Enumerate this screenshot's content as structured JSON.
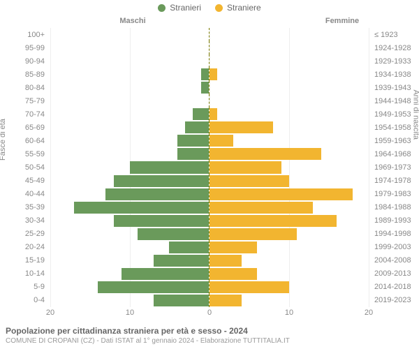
{
  "legend": {
    "male": {
      "label": "Stranieri",
      "color": "#6a9a5b"
    },
    "female": {
      "label": "Straniere",
      "color": "#f2b530"
    }
  },
  "col_headers": {
    "male": "Maschi",
    "female": "Femmine"
  },
  "axis_titles": {
    "left": "Fasce di età",
    "right": "Anni di nascita"
  },
  "xaxis": {
    "max": 20,
    "ticks_left": [
      20,
      10,
      0
    ],
    "ticks_right": [
      0,
      10,
      20
    ],
    "grid_color": "#eeeeee"
  },
  "colors": {
    "male_bar": "#6a9a5b",
    "female_bar": "#f2b530",
    "center_line": "#808000",
    "background": "#ffffff",
    "text": "#888888"
  },
  "chart_type": "population-pyramid",
  "footer": {
    "title": "Popolazione per cittadinanza straniera per età e sesso - 2024",
    "subtitle": "COMUNE DI CROPANI (CZ) - Dati ISTAT al 1° gennaio 2024 - Elaborazione TUTTITALIA.IT"
  },
  "rows": [
    {
      "age": "100+",
      "birth": "≤ 1923",
      "m": 0,
      "f": 0
    },
    {
      "age": "95-99",
      "birth": "1924-1928",
      "m": 0,
      "f": 0
    },
    {
      "age": "90-94",
      "birth": "1929-1933",
      "m": 0,
      "f": 0
    },
    {
      "age": "85-89",
      "birth": "1934-1938",
      "m": 1,
      "f": 1
    },
    {
      "age": "80-84",
      "birth": "1939-1943",
      "m": 1,
      "f": 0
    },
    {
      "age": "75-79",
      "birth": "1944-1948",
      "m": 0,
      "f": 0
    },
    {
      "age": "70-74",
      "birth": "1949-1953",
      "m": 2,
      "f": 1
    },
    {
      "age": "65-69",
      "birth": "1954-1958",
      "m": 3,
      "f": 8
    },
    {
      "age": "60-64",
      "birth": "1959-1963",
      "m": 4,
      "f": 3
    },
    {
      "age": "55-59",
      "birth": "1964-1968",
      "m": 4,
      "f": 14
    },
    {
      "age": "50-54",
      "birth": "1969-1973",
      "m": 10,
      "f": 9
    },
    {
      "age": "45-49",
      "birth": "1974-1978",
      "m": 12,
      "f": 10
    },
    {
      "age": "40-44",
      "birth": "1979-1983",
      "m": 13,
      "f": 18
    },
    {
      "age": "35-39",
      "birth": "1984-1988",
      "m": 17,
      "f": 13
    },
    {
      "age": "30-34",
      "birth": "1989-1993",
      "m": 12,
      "f": 16
    },
    {
      "age": "25-29",
      "birth": "1994-1998",
      "m": 9,
      "f": 11
    },
    {
      "age": "20-24",
      "birth": "1999-2003",
      "m": 5,
      "f": 6
    },
    {
      "age": "15-19",
      "birth": "2004-2008",
      "m": 7,
      "f": 4
    },
    {
      "age": "10-14",
      "birth": "2009-2013",
      "m": 11,
      "f": 6
    },
    {
      "age": "5-9",
      "birth": "2014-2018",
      "m": 14,
      "f": 10
    },
    {
      "age": "0-4",
      "birth": "2019-2023",
      "m": 7,
      "f": 4
    }
  ]
}
